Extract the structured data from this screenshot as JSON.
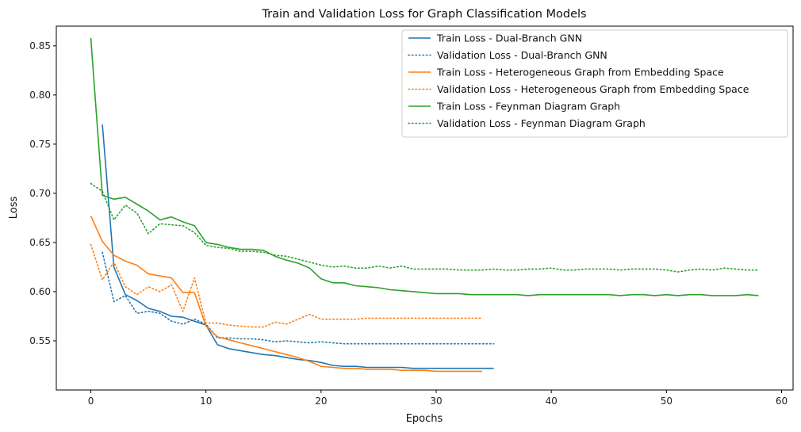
{
  "chart_data": {
    "type": "line",
    "title": "Train and Validation Loss for Graph Classification Models",
    "xlabel": "Epochs",
    "ylabel": "Loss",
    "xlim": [
      -3,
      61
    ],
    "ylim": [
      0.5,
      0.87
    ],
    "xticks": [
      0,
      10,
      20,
      30,
      40,
      50,
      60
    ],
    "yticks": [
      0.55,
      0.6,
      0.65,
      0.7,
      0.75,
      0.8,
      0.85
    ],
    "ytick_labels": [
      "0.55",
      "0.60",
      "0.65",
      "0.70",
      "0.75",
      "0.80",
      "0.85"
    ],
    "grid": false,
    "legend": "top-right",
    "series": [
      {
        "name": "Train Loss - Dual-Branch GNN",
        "color": "#1f77b4",
        "style": "solid",
        "x_start": 1,
        "values": [
          0.77,
          0.625,
          0.597,
          0.591,
          0.583,
          0.58,
          0.575,
          0.574,
          0.57,
          0.566,
          0.546,
          0.542,
          0.54,
          0.538,
          0.536,
          0.535,
          0.533,
          0.531,
          0.53,
          0.528,
          0.525,
          0.524,
          0.524,
          0.523,
          0.523,
          0.523,
          0.523,
          0.522,
          0.522,
          0.522,
          0.522,
          0.522,
          0.522,
          0.522,
          0.522
        ]
      },
      {
        "name": "Validation Loss - Dual-Branch GNN",
        "color": "#1f77b4",
        "style": "dotted",
        "x_start": 1,
        "values": [
          0.64,
          0.59,
          0.596,
          0.578,
          0.58,
          0.578,
          0.57,
          0.567,
          0.572,
          0.567,
          0.553,
          0.553,
          0.552,
          0.552,
          0.551,
          0.549,
          0.55,
          0.549,
          0.548,
          0.549,
          0.548,
          0.547,
          0.547,
          0.547,
          0.547,
          0.547,
          0.547,
          0.547,
          0.547,
          0.547,
          0.547,
          0.547,
          0.547,
          0.547,
          0.547
        ]
      },
      {
        "name": "Train Loss - Heterogeneous Graph from Embedding Space",
        "color": "#ff7f0e",
        "style": "solid",
        "x_start": 0,
        "values": [
          0.677,
          0.651,
          0.637,
          0.631,
          0.627,
          0.618,
          0.616,
          0.614,
          0.599,
          0.599,
          0.565,
          0.554,
          0.551,
          0.548,
          0.545,
          0.542,
          0.539,
          0.536,
          0.533,
          0.529,
          0.524,
          0.523,
          0.522,
          0.522,
          0.521,
          0.521,
          0.521,
          0.52,
          0.52,
          0.52,
          0.519,
          0.519,
          0.519,
          0.519,
          0.519
        ]
      },
      {
        "name": "Validation Loss - Heterogeneous Graph from Embedding Space",
        "color": "#ff7f0e",
        "style": "dotted",
        "x_start": 0,
        "values": [
          0.648,
          0.612,
          0.63,
          0.605,
          0.597,
          0.605,
          0.6,
          0.607,
          0.58,
          0.614,
          0.568,
          0.568,
          0.566,
          0.565,
          0.564,
          0.564,
          0.569,
          0.567,
          0.572,
          0.577,
          0.572,
          0.572,
          0.572,
          0.572,
          0.573,
          0.573,
          0.573,
          0.573,
          0.573,
          0.573,
          0.573,
          0.573,
          0.573,
          0.573,
          0.573
        ]
      },
      {
        "name": "Train Loss - Feynman Diagram Graph",
        "color": "#2ca02c",
        "style": "solid",
        "x_start": 0,
        "values": [
          0.858,
          0.698,
          0.694,
          0.696,
          0.689,
          0.682,
          0.673,
          0.676,
          0.671,
          0.667,
          0.65,
          0.648,
          0.645,
          0.643,
          0.643,
          0.642,
          0.636,
          0.632,
          0.629,
          0.624,
          0.613,
          0.609,
          0.609,
          0.606,
          0.605,
          0.604,
          0.602,
          0.601,
          0.6,
          0.599,
          0.598,
          0.598,
          0.598,
          0.597,
          0.597,
          0.597,
          0.597,
          0.597,
          0.596,
          0.597,
          0.597,
          0.597,
          0.597,
          0.597,
          0.597,
          0.597,
          0.596,
          0.597,
          0.597,
          0.596,
          0.597,
          0.596,
          0.597,
          0.597,
          0.596,
          0.596,
          0.596,
          0.597,
          0.596
        ]
      },
      {
        "name": "Validation Loss - Feynman Diagram Graph",
        "color": "#2ca02c",
        "style": "dotted",
        "x_start": 0,
        "values": [
          0.71,
          0.702,
          0.673,
          0.688,
          0.68,
          0.659,
          0.669,
          0.668,
          0.667,
          0.66,
          0.647,
          0.645,
          0.644,
          0.641,
          0.641,
          0.64,
          0.637,
          0.636,
          0.633,
          0.63,
          0.627,
          0.625,
          0.626,
          0.624,
          0.624,
          0.626,
          0.624,
          0.626,
          0.623,
          0.623,
          0.623,
          0.623,
          0.622,
          0.622,
          0.622,
          0.623,
          0.622,
          0.622,
          0.623,
          0.623,
          0.624,
          0.622,
          0.622,
          0.623,
          0.623,
          0.623,
          0.622,
          0.623,
          0.623,
          0.623,
          0.622,
          0.62,
          0.622,
          0.623,
          0.622,
          0.624,
          0.623,
          0.622,
          0.622
        ]
      }
    ]
  }
}
